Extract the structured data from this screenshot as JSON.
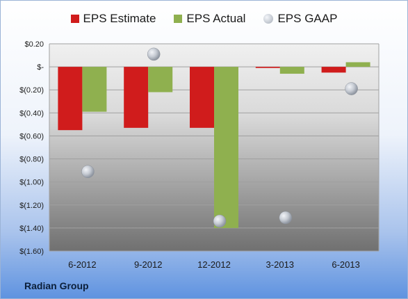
{
  "company_label": "Radian Group",
  "chart_data": {
    "type": "bar",
    "categories": [
      "6-2012",
      "9-2012",
      "12-2012",
      "3-2013",
      "6-2013"
    ],
    "series": [
      {
        "name": "EPS Estimate",
        "type": "bar",
        "color": "#d01c1c",
        "values": [
          -0.55,
          -0.53,
          -0.53,
          -0.01,
          -0.05
        ]
      },
      {
        "name": "EPS Actual",
        "type": "bar",
        "color": "#8fb04f",
        "values": [
          -0.39,
          -0.22,
          -1.4,
          -0.06,
          0.04
        ]
      },
      {
        "name": "EPS GAAP",
        "type": "scatter",
        "color": "#b8bec7",
        "values": [
          -0.91,
          0.11,
          -1.34,
          -1.31,
          -0.19
        ]
      }
    ],
    "ylim": [
      -1.6,
      0.2
    ],
    "yticks": [
      0.2,
      0.0,
      -0.2,
      -0.4,
      -0.6,
      -0.8,
      -1.0,
      -1.2,
      -1.4,
      -1.6
    ],
    "ytick_labels": [
      "$0.20",
      "$-",
      "$(0.20)",
      "$(0.40)",
      "$(0.60)",
      "$(0.80)",
      "$(1.00)",
      "$(1.20)",
      "$(1.40)",
      "$(1.60)"
    ],
    "grid": true,
    "legend_position": "top"
  }
}
